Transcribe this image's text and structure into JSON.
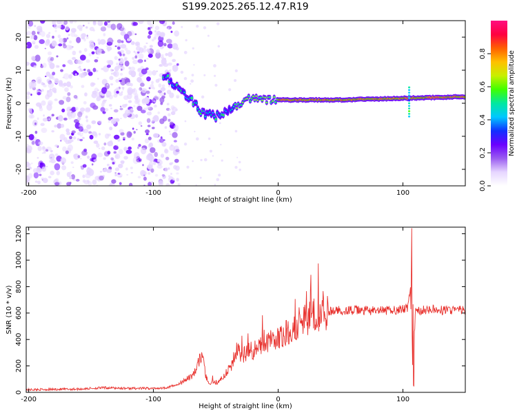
{
  "chart_data": [
    {
      "type": "heatmap",
      "title": "S199.2025.265.12.47.R19",
      "xlabel": "Height of straight line (km)",
      "ylabel": "Frequency (Hz)",
      "xlim": [
        -202,
        150
      ],
      "ylim": [
        -25,
        25
      ],
      "xticks": [
        -200,
        -100,
        0,
        100
      ],
      "xtick_labels": [
        "-200",
        "-100",
        "0",
        "100"
      ],
      "yticks": [
        -20,
        -10,
        0,
        10,
        20
      ],
      "ytick_labels": [
        "-20",
        "-10",
        "0",
        "10",
        "20"
      ],
      "colorbar": {
        "label": "Normalized spectral amplitude",
        "range": [
          0,
          1
        ],
        "ticks": [
          0.0,
          0.2,
          0.4,
          0.6,
          0.8
        ],
        "tick_labels": [
          "0.0",
          "0.2",
          "0.4",
          "0.6",
          "0.8"
        ],
        "colors": [
          "#ffffff",
          "#e6d6ff",
          "#9a5cf0",
          "#6a00ff",
          "#1030ff",
          "#00c8ff",
          "#00e8a0",
          "#40ff00",
          "#c8f000",
          "#ffc000",
          "#ff6000",
          "#ff0040",
          "#ff1080"
        ]
      },
      "description_values": {
        "noise_region_x": [
          -202,
          -90
        ],
        "signal_band_center_hz": [
          [
            -90,
            8
          ],
          [
            -80,
            5
          ],
          [
            -70,
            1
          ],
          [
            -60,
            -3
          ],
          [
            -50,
            -4
          ],
          [
            -40,
            -2
          ],
          [
            -30,
            0
          ],
          [
            -20,
            2
          ],
          [
            -10,
            1
          ],
          [
            0,
            1
          ],
          [
            50,
            1
          ],
          [
            100,
            1.5
          ],
          [
            150,
            2
          ]
        ]
      }
    },
    {
      "type": "line",
      "xlabel": "Height of straight line (km)",
      "ylabel": "SNR (10 * v/v)",
      "xlim": [
        -202,
        150
      ],
      "ylim": [
        0,
        1250
      ],
      "xticks": [
        -200,
        -100,
        0,
        100
      ],
      "xtick_labels": [
        "-200",
        "-100",
        "0",
        "100"
      ],
      "yticks": [
        0,
        200,
        400,
        600,
        800,
        1000,
        1200
      ],
      "ytick_labels": [
        "0",
        "200",
        "400",
        "600",
        "800",
        "1000",
        "1200"
      ],
      "series": [
        {
          "name": "SNR",
          "color": "#e8322e",
          "x": [
            -202,
            -160,
            -140,
            -120,
            -100,
            -90,
            -80,
            -75,
            -70,
            -65,
            -62,
            -60,
            -58,
            -55,
            -52,
            -50,
            -45,
            -40,
            -35,
            -32,
            -30,
            -28,
            -25,
            -20,
            -15,
            -10,
            -5,
            0,
            10,
            20,
            30,
            40,
            50,
            60,
            70,
            80,
            90,
            100,
            104,
            106,
            107,
            108,
            110,
            120,
            130,
            140,
            150
          ],
          "y": [
            20,
            25,
            35,
            30,
            30,
            35,
            60,
            90,
            120,
            180,
            280,
            220,
            120,
            60,
            80,
            60,
            110,
            170,
            240,
            320,
            260,
            280,
            300,
            320,
            350,
            370,
            390,
            410,
            480,
            540,
            590,
            610,
            620,
            620,
            620,
            615,
            620,
            630,
            640,
            800,
            1050,
            200,
            610,
            630,
            620,
            625,
            620
          ]
        }
      ]
    }
  ]
}
